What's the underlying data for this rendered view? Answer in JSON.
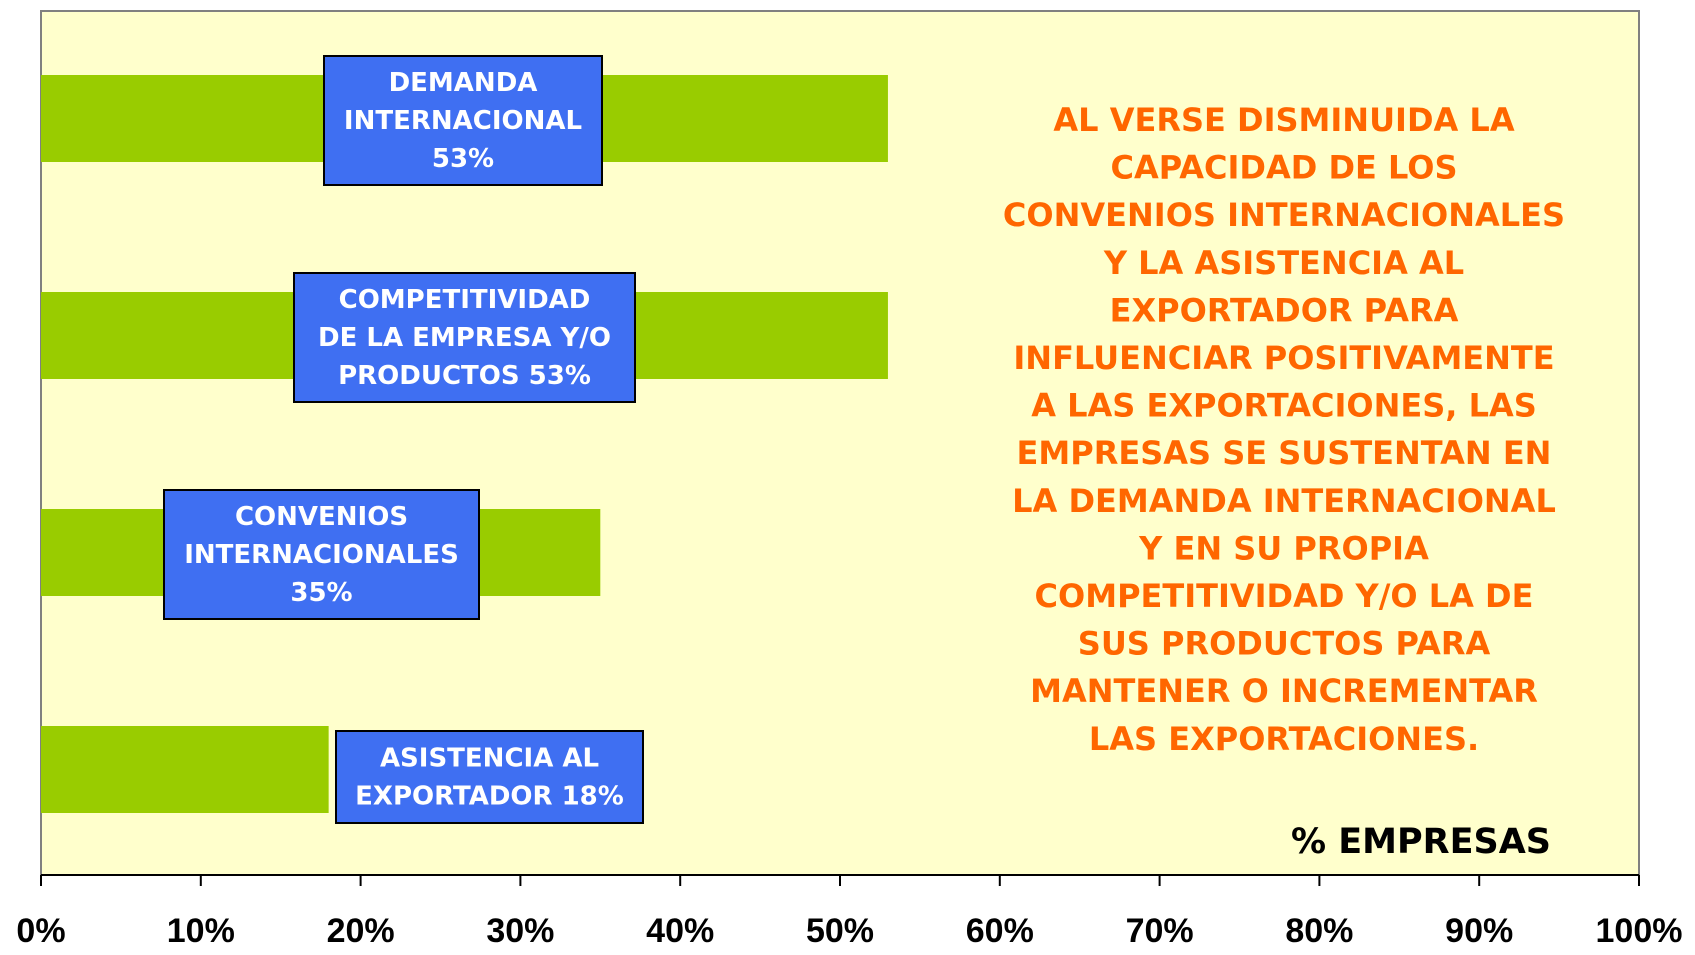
{
  "chart_data": {
    "type": "hbar",
    "values": [
      53,
      53,
      35,
      18
    ],
    "value_labels": [
      [
        "DEMANDA",
        "INTERNACIONAL",
        "53%"
      ],
      [
        "COMPETITIVIDAD",
        "DE LA EMPRESA Y/O",
        "PRODUCTOS 53%"
      ],
      [
        "CONVENIOS",
        "INTERNACIONALES",
        "35%"
      ],
      [
        "ASISTENCIA AL",
        "EXPORTADOR 18%"
      ]
    ],
    "color": "#99cc00",
    "label_box_color": "#3f6ff2",
    "background": "#ffffcc",
    "xlim": [
      0,
      100
    ],
    "xticks": [
      {
        "value": 0,
        "label": "0%"
      },
      {
        "value": 10,
        "label": "10%"
      },
      {
        "value": 20,
        "label": "20%"
      },
      {
        "value": 30,
        "label": "30%"
      },
      {
        "value": 40,
        "label": "40%"
      },
      {
        "value": 50,
        "label": "50%"
      },
      {
        "value": 60,
        "label": "60%"
      },
      {
        "value": 70,
        "label": "70%"
      },
      {
        "value": 80,
        "label": "80%"
      },
      {
        "value": 90,
        "label": "90%"
      },
      {
        "value": 100,
        "label": "100%"
      }
    ],
    "xlabel": "% EMPRESAS",
    "annotation_color": "#ff6600",
    "annotation": [
      "AL VERSE DISMINUIDA LA",
      "CAPACIDAD DE LOS",
      "CONVENIOS INTERNACIONALES",
      "Y LA ASISTENCIA AL",
      "EXPORTADOR PARA",
      "INFLUENCIAR POSITIVAMENTE",
      "A LAS EXPORTACIONES, LAS",
      "EMPRESAS SE SUSTENTAN EN",
      "LA DEMANDA INTERNACIONAL",
      "Y EN SU PROPIA",
      "COMPETITIVIDAD Y/O LA DE",
      "SUS PRODUCTOS PARA",
      "MANTENER O INCREMENTAR",
      "LAS EXPORTACIONES."
    ]
  }
}
